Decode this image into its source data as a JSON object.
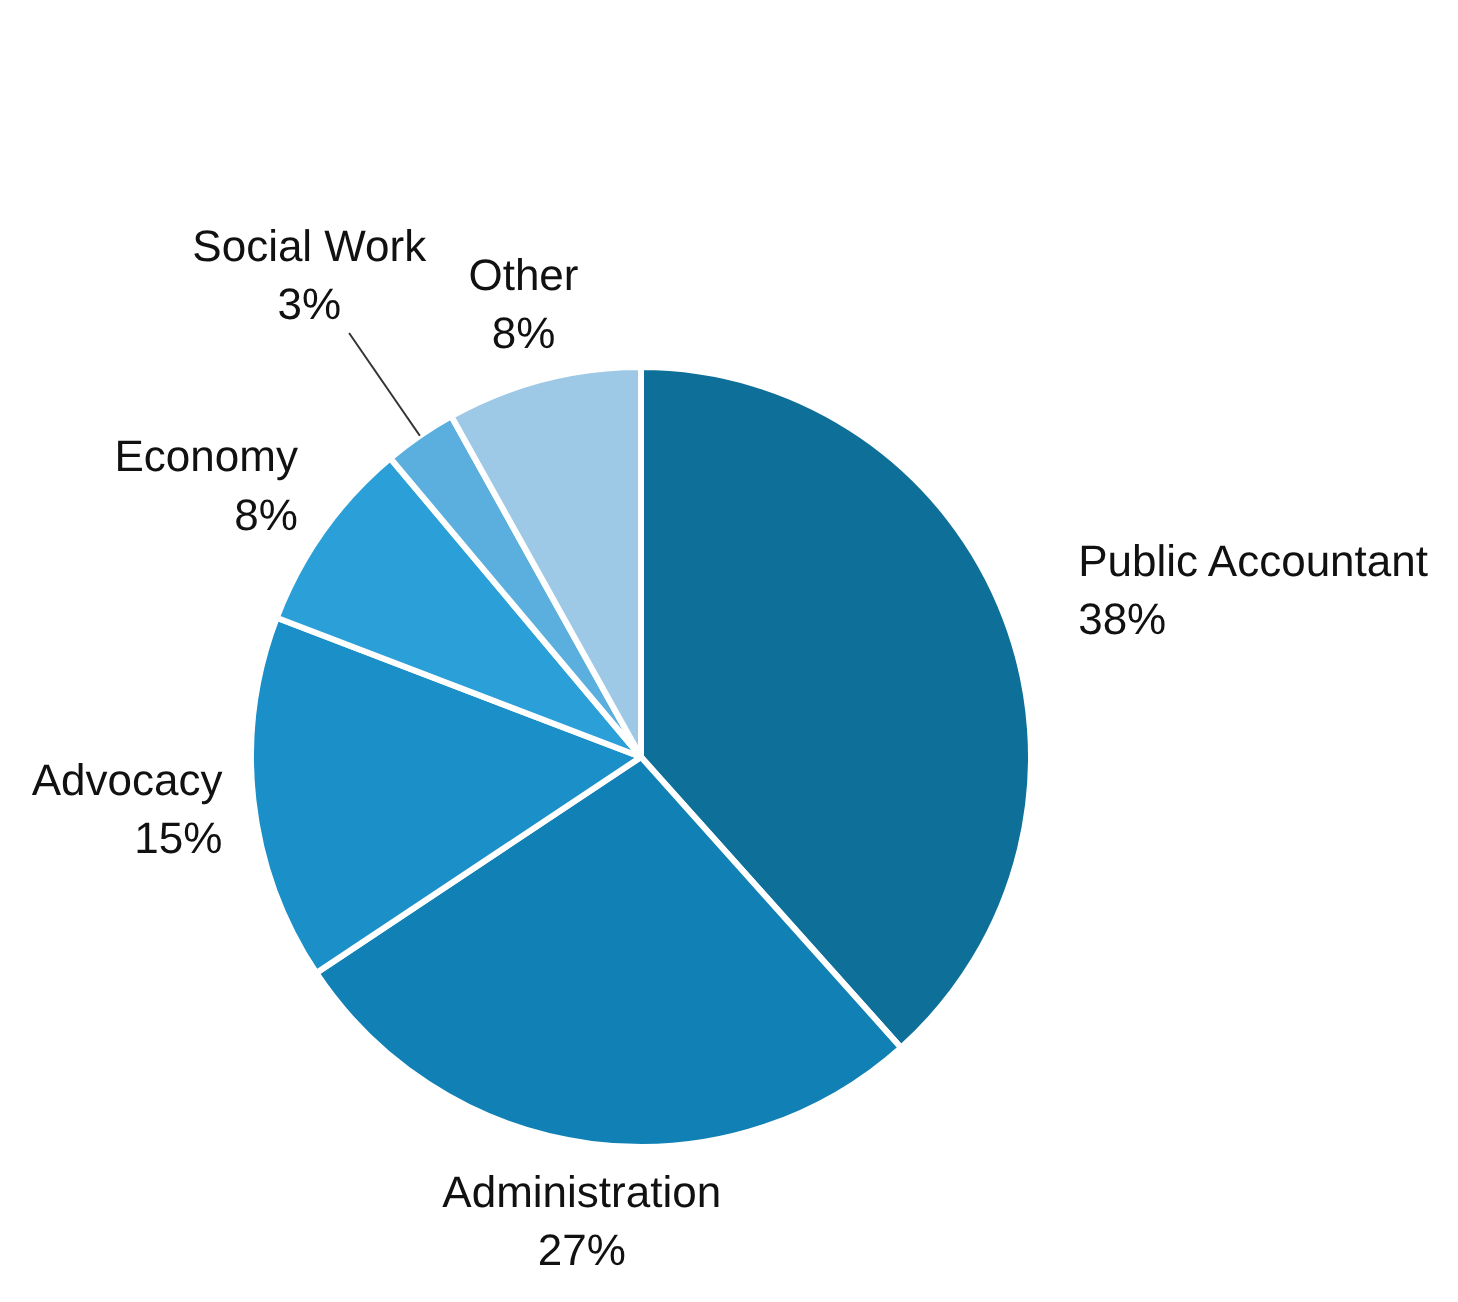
{
  "chart_data": {
    "type": "pie",
    "categories": [
      "Public Accountant",
      "Administration",
      "Advocacy",
      "Economy",
      "Social Work",
      "Other"
    ],
    "values": [
      38,
      27,
      15,
      8,
      3,
      8
    ],
    "value_labels": [
      "38%",
      "27%",
      "15%",
      "8%",
      "3%",
      "8%"
    ],
    "colors": [
      "#0e7099",
      "#1181b5",
      "#1a8fc8",
      "#2a9fd8",
      "#5aafde",
      "#9dc8e6"
    ],
    "legend": false
  }
}
